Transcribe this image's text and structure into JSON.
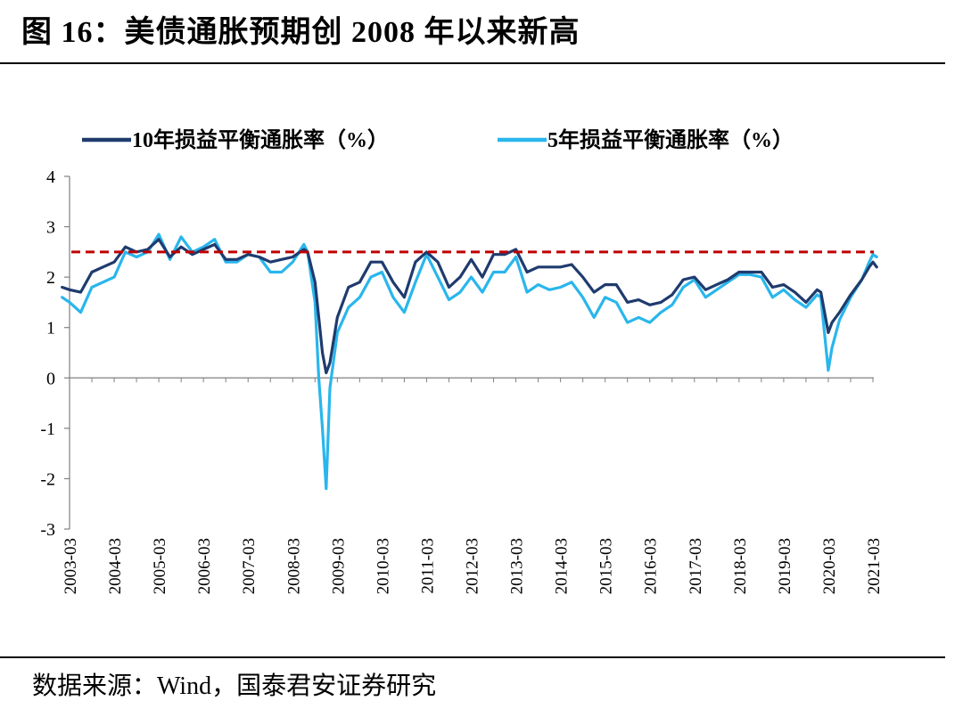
{
  "figure": {
    "title": "图 16：美债通胀预期创 2008 年以来新高",
    "source": "数据来源：Wind，国泰君安证券研究"
  },
  "colors": {
    "series_10y": "#1f3b6e",
    "series_5y": "#29b6ec",
    "reference_line": "#c00000",
    "axis": "#808080"
  },
  "chart_data": {
    "type": "line",
    "title": "",
    "xlabel": "",
    "ylabel": "",
    "ylim": [
      -3,
      4
    ],
    "yticks": [
      "4",
      "3",
      "2",
      "1",
      "0",
      "-1",
      "-2",
      "-3"
    ],
    "xticks": [
      "2003-03",
      "2004-03",
      "2005-03",
      "2006-03",
      "2007-03",
      "2008-03",
      "2009-03",
      "2010-03",
      "2011-03",
      "2012-03",
      "2013-03",
      "2014-03",
      "2015-03",
      "2016-03",
      "2017-03",
      "2018-03",
      "2019-03",
      "2020-03",
      "2021-03"
    ],
    "legend_position": "top",
    "grid": false,
    "reference_line": {
      "y": 2.5,
      "style": "dashed"
    },
    "series": [
      {
        "name": "10年损益平衡通胀率（%）",
        "points": [
          [
            "2003-01",
            1.8
          ],
          [
            "2003-03",
            1.75
          ],
          [
            "2003-06",
            1.7
          ],
          [
            "2003-09",
            2.1
          ],
          [
            "2003-12",
            2.2
          ],
          [
            "2004-03",
            2.3
          ],
          [
            "2004-06",
            2.6
          ],
          [
            "2004-09",
            2.5
          ],
          [
            "2004-12",
            2.55
          ],
          [
            "2005-03",
            2.75
          ],
          [
            "2005-06",
            2.4
          ],
          [
            "2005-09",
            2.6
          ],
          [
            "2005-12",
            2.45
          ],
          [
            "2006-03",
            2.55
          ],
          [
            "2006-06",
            2.65
          ],
          [
            "2006-09",
            2.35
          ],
          [
            "2006-12",
            2.35
          ],
          [
            "2007-03",
            2.45
          ],
          [
            "2007-06",
            2.4
          ],
          [
            "2007-09",
            2.3
          ],
          [
            "2007-12",
            2.35
          ],
          [
            "2008-03",
            2.4
          ],
          [
            "2008-06",
            2.55
          ],
          [
            "2008-07",
            2.5
          ],
          [
            "2008-09",
            1.9
          ],
          [
            "2008-10",
            1.2
          ],
          [
            "2008-11",
            0.5
          ],
          [
            "2008-12",
            0.1
          ],
          [
            "2009-01",
            0.3
          ],
          [
            "2009-03",
            1.2
          ],
          [
            "2009-06",
            1.8
          ],
          [
            "2009-09",
            1.9
          ],
          [
            "2009-12",
            2.3
          ],
          [
            "2010-03",
            2.3
          ],
          [
            "2010-06",
            1.9
          ],
          [
            "2010-09",
            1.6
          ],
          [
            "2010-12",
            2.3
          ],
          [
            "2011-03",
            2.5
          ],
          [
            "2011-06",
            2.3
          ],
          [
            "2011-09",
            1.8
          ],
          [
            "2011-12",
            2.0
          ],
          [
            "2012-03",
            2.35
          ],
          [
            "2012-06",
            2.0
          ],
          [
            "2012-09",
            2.45
          ],
          [
            "2012-12",
            2.45
          ],
          [
            "2013-03",
            2.55
          ],
          [
            "2013-06",
            2.1
          ],
          [
            "2013-09",
            2.2
          ],
          [
            "2013-12",
            2.2
          ],
          [
            "2014-03",
            2.2
          ],
          [
            "2014-06",
            2.25
          ],
          [
            "2014-09",
            2.0
          ],
          [
            "2014-12",
            1.7
          ],
          [
            "2015-03",
            1.85
          ],
          [
            "2015-06",
            1.85
          ],
          [
            "2015-09",
            1.5
          ],
          [
            "2015-12",
            1.55
          ],
          [
            "2016-03",
            1.45
          ],
          [
            "2016-06",
            1.5
          ],
          [
            "2016-09",
            1.65
          ],
          [
            "2016-12",
            1.95
          ],
          [
            "2017-03",
            2.0
          ],
          [
            "2017-06",
            1.75
          ],
          [
            "2017-09",
            1.85
          ],
          [
            "2017-12",
            1.95
          ],
          [
            "2018-03",
            2.1
          ],
          [
            "2018-06",
            2.1
          ],
          [
            "2018-09",
            2.1
          ],
          [
            "2018-12",
            1.8
          ],
          [
            "2019-03",
            1.85
          ],
          [
            "2019-06",
            1.7
          ],
          [
            "2019-09",
            1.5
          ],
          [
            "2019-12",
            1.75
          ],
          [
            "2020-01",
            1.7
          ],
          [
            "2020-03",
            0.9
          ],
          [
            "2020-04",
            1.1
          ],
          [
            "2020-06",
            1.3
          ],
          [
            "2020-09",
            1.65
          ],
          [
            "2020-12",
            1.95
          ],
          [
            "2021-02",
            2.2
          ],
          [
            "2021-03",
            2.3
          ],
          [
            "2021-04",
            2.2
          ]
        ]
      },
      {
        "name": "5年损益平衡通胀率（%）",
        "points": [
          [
            "2003-01",
            1.6
          ],
          [
            "2003-03",
            1.5
          ],
          [
            "2003-06",
            1.3
          ],
          [
            "2003-09",
            1.8
          ],
          [
            "2003-12",
            1.9
          ],
          [
            "2004-03",
            2.0
          ],
          [
            "2004-06",
            2.5
          ],
          [
            "2004-09",
            2.4
          ],
          [
            "2004-12",
            2.5
          ],
          [
            "2005-03",
            2.85
          ],
          [
            "2005-06",
            2.35
          ],
          [
            "2005-09",
            2.8
          ],
          [
            "2005-12",
            2.5
          ],
          [
            "2006-03",
            2.6
          ],
          [
            "2006-06",
            2.75
          ],
          [
            "2006-09",
            2.3
          ],
          [
            "2006-12",
            2.3
          ],
          [
            "2007-03",
            2.45
          ],
          [
            "2007-06",
            2.4
          ],
          [
            "2007-09",
            2.1
          ],
          [
            "2007-12",
            2.1
          ],
          [
            "2008-03",
            2.3
          ],
          [
            "2008-06",
            2.65
          ],
          [
            "2008-07",
            2.5
          ],
          [
            "2008-09",
            1.5
          ],
          [
            "2008-10",
            0.0
          ],
          [
            "2008-11",
            -1.0
          ],
          [
            "2008-12",
            -2.2
          ],
          [
            "2009-01",
            -0.2
          ],
          [
            "2009-03",
            0.9
          ],
          [
            "2009-06",
            1.4
          ],
          [
            "2009-09",
            1.6
          ],
          [
            "2009-12",
            2.0
          ],
          [
            "2010-03",
            2.1
          ],
          [
            "2010-06",
            1.6
          ],
          [
            "2010-09",
            1.3
          ],
          [
            "2010-12",
            1.9
          ],
          [
            "2011-03",
            2.45
          ],
          [
            "2011-06",
            2.0
          ],
          [
            "2011-09",
            1.55
          ],
          [
            "2011-12",
            1.7
          ],
          [
            "2012-03",
            2.0
          ],
          [
            "2012-06",
            1.7
          ],
          [
            "2012-09",
            2.1
          ],
          [
            "2012-12",
            2.1
          ],
          [
            "2013-03",
            2.4
          ],
          [
            "2013-06",
            1.7
          ],
          [
            "2013-09",
            1.85
          ],
          [
            "2013-12",
            1.75
          ],
          [
            "2014-03",
            1.8
          ],
          [
            "2014-06",
            1.9
          ],
          [
            "2014-09",
            1.6
          ],
          [
            "2014-12",
            1.2
          ],
          [
            "2015-03",
            1.6
          ],
          [
            "2015-06",
            1.5
          ],
          [
            "2015-09",
            1.1
          ],
          [
            "2015-12",
            1.2
          ],
          [
            "2016-03",
            1.1
          ],
          [
            "2016-06",
            1.3
          ],
          [
            "2016-09",
            1.45
          ],
          [
            "2016-12",
            1.8
          ],
          [
            "2017-03",
            1.95
          ],
          [
            "2017-06",
            1.6
          ],
          [
            "2017-09",
            1.75
          ],
          [
            "2017-12",
            1.9
          ],
          [
            "2018-03",
            2.05
          ],
          [
            "2018-06",
            2.05
          ],
          [
            "2018-09",
            2.0
          ],
          [
            "2018-12",
            1.6
          ],
          [
            "2019-03",
            1.75
          ],
          [
            "2019-06",
            1.55
          ],
          [
            "2019-09",
            1.4
          ],
          [
            "2019-12",
            1.65
          ],
          [
            "2020-01",
            1.6
          ],
          [
            "2020-03",
            0.15
          ],
          [
            "2020-04",
            0.6
          ],
          [
            "2020-06",
            1.15
          ],
          [
            "2020-09",
            1.6
          ],
          [
            "2020-12",
            1.95
          ],
          [
            "2021-02",
            2.3
          ],
          [
            "2021-03",
            2.45
          ],
          [
            "2021-04",
            2.4
          ]
        ]
      }
    ]
  }
}
